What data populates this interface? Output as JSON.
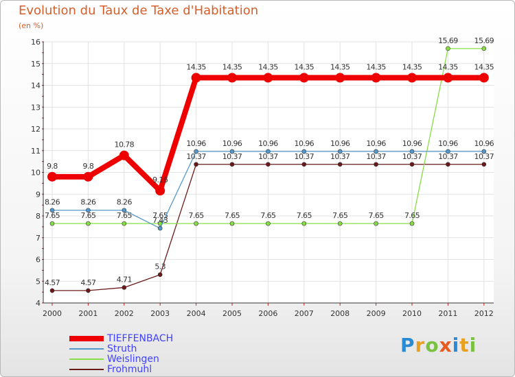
{
  "chart_data": {
    "type": "line",
    "title": "Evolution du Taux de Taxe d'Habitation",
    "subtitle": "(en %)",
    "categories": [
      "2000",
      "2001",
      "2002",
      "2003",
      "2004",
      "2005",
      "2006",
      "2007",
      "2008",
      "2009",
      "2010",
      "2011",
      "2012"
    ],
    "ylim": [
      4,
      16
    ],
    "yticks": [
      "4",
      "5",
      "6",
      "7",
      "8",
      "9",
      "10",
      "11",
      "12",
      "13",
      "14",
      "15",
      "16"
    ],
    "grid": true,
    "legend_position": "bottom-left",
    "series": [
      {
        "name": "Frohmuhl",
        "color": "#6b1a1a",
        "values": [
          4.57,
          4.57,
          4.71,
          5.3,
          10.37,
          10.37,
          10.37,
          10.37,
          10.37,
          10.37,
          10.37,
          10.37,
          10.37
        ],
        "labels": [
          "4.57",
          "4.57",
          "4.71",
          "5.3",
          "10.37",
          "10.37",
          "10.37",
          "10.37",
          "10.37",
          "10.37",
          "10.37",
          "10.37",
          "10.37"
        ]
      },
      {
        "name": "Weislingen",
        "color": "#88dd44",
        "values": [
          7.65,
          7.65,
          7.65,
          7.65,
          7.65,
          7.65,
          7.65,
          7.65,
          7.65,
          7.65,
          7.65,
          15.69,
          15.69
        ],
        "labels": [
          "7.65",
          "7.65",
          "7.65",
          "7.65",
          "7.65",
          "7.65",
          "7.65",
          "7.65",
          "7.65",
          "7.65",
          "7.65",
          "15.69",
          "15.69"
        ]
      },
      {
        "name": "Struth",
        "color": "#5599cc",
        "values": [
          8.26,
          8.26,
          8.26,
          7.43,
          10.96,
          10.96,
          10.96,
          10.96,
          10.96,
          10.96,
          10.96,
          10.96,
          10.96
        ],
        "labels": [
          "8.26",
          "8.26",
          "8.26",
          "7.43",
          "10.96",
          "10.96",
          "10.96",
          "10.96",
          "10.96",
          "10.96",
          "10.96",
          "10.96",
          "10.96"
        ]
      },
      {
        "name": "TIEFFENBACH",
        "color": "#ee0000",
        "values": [
          9.8,
          9.8,
          10.78,
          9.16,
          14.35,
          14.35,
          14.35,
          14.35,
          14.35,
          14.35,
          14.35,
          14.35,
          14.35
        ],
        "labels": [
          "9.8",
          "9.8",
          "10.78",
          "9.16",
          "14.35",
          "14.35",
          "14.35",
          "14.35",
          "14.35",
          "14.35",
          "14.35",
          "14.35",
          "14.35"
        ]
      }
    ],
    "legend": [
      "TIEFFENBACH",
      "Struth",
      "Weislingen",
      "Frohmuhl"
    ]
  },
  "brand": {
    "letters": [
      "P",
      "r",
      "o",
      "x",
      "i",
      "t",
      "i"
    ],
    "colors": [
      "#2a8ad4",
      "#e8a020",
      "#7ac142",
      "#e85a20",
      "#2a8ad4",
      "#e8a020",
      "#7ac142"
    ]
  }
}
